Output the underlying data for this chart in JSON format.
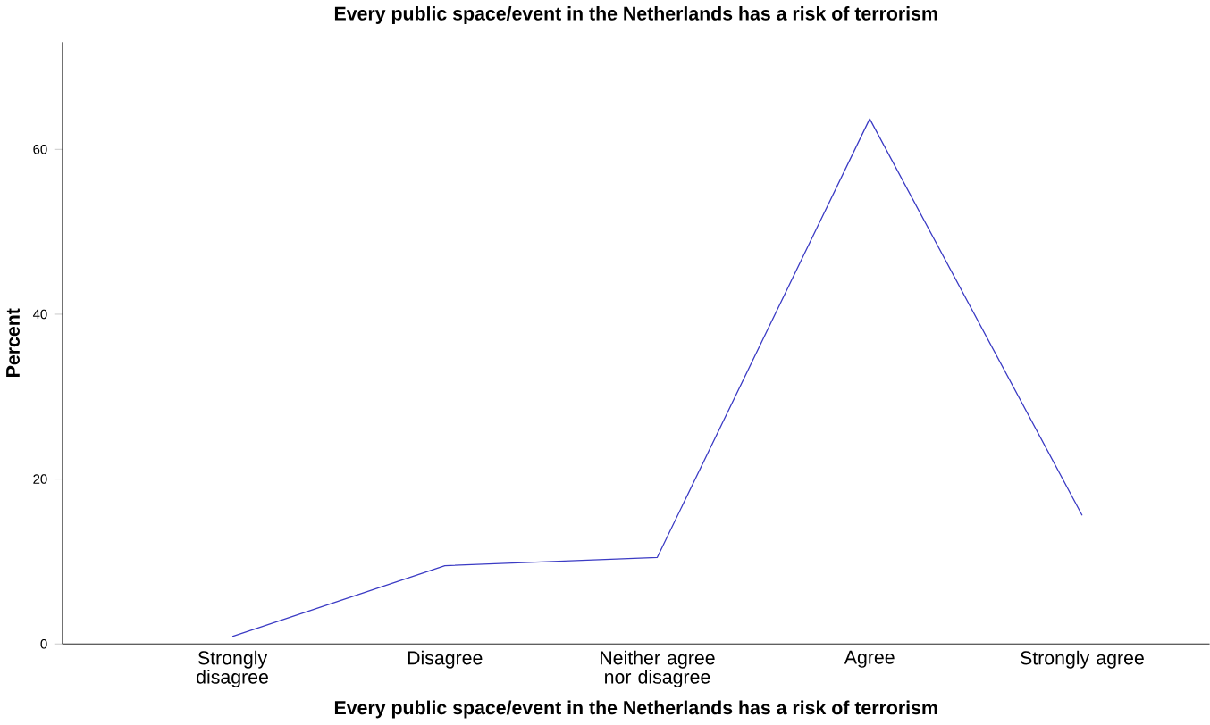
{
  "chart_data": {
    "type": "line",
    "title": "Every public space/event in the Netherlands has a risk of terrorism",
    "xlabel": "Every public space/event in the Netherlands has a risk of terrorism",
    "ylabel": "Percent",
    "categories": [
      "Strongly disagree",
      "Disagree",
      "Neither agree nor disagree",
      "Agree",
      "Strongly agree"
    ],
    "series": [
      {
        "color": "#3b3bc4",
        "values": [
          0.9,
          9.5,
          10.5,
          63.7,
          15.6
        ]
      }
    ],
    "ylim": [
      0,
      73
    ],
    "yticks": [
      0,
      20,
      40,
      60
    ],
    "marker": "none",
    "line_style": "solid"
  }
}
